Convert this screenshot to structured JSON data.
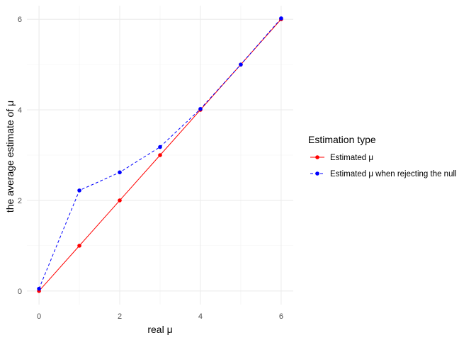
{
  "chart_data": {
    "type": "line",
    "x": [
      0,
      1,
      2,
      3,
      4,
      5,
      6
    ],
    "xlabel": "real μ",
    "ylabel": "the average estimate of μ",
    "xlim": [
      -0.3,
      6.3
    ],
    "ylim": [
      -0.3,
      6.3
    ],
    "xticks": [
      "0",
      "2",
      "4",
      "6"
    ],
    "yticks": [
      "0",
      "2",
      "4",
      "6"
    ],
    "grid": true,
    "legend_position": "right",
    "legend_title": "Estimation type",
    "series": [
      {
        "name": "Estimated μ",
        "values": [
          0.0,
          1.0,
          2.0,
          3.0,
          4.0,
          5.0,
          6.0
        ],
        "color": "#ff0000",
        "line_style": "solid"
      },
      {
        "name": "Estimated μ when rejecting the null",
        "values": [
          0.05,
          2.22,
          2.62,
          3.18,
          4.02,
          5.0,
          6.02
        ],
        "color": "#0000ff",
        "line_style": "dashed"
      }
    ]
  }
}
